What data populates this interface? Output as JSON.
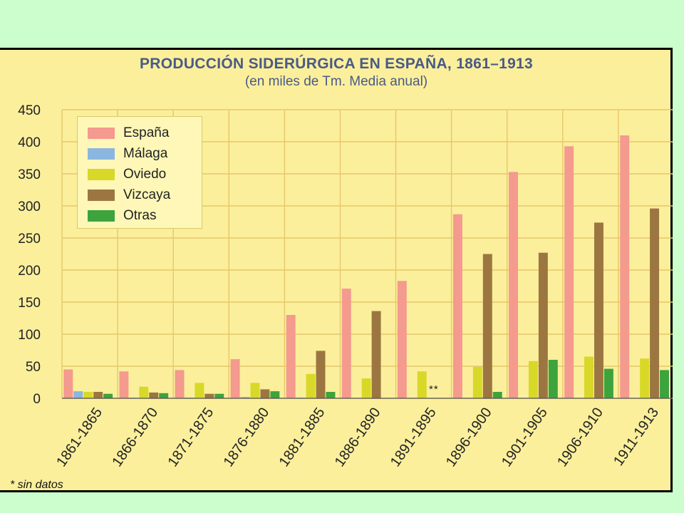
{
  "chart_data": {
    "type": "bar",
    "title": "PRODUCCIÓN SIDERÚRGICA EN ESPAÑA, 1861–1913",
    "subtitle": "(en miles de Tm. Media anual)",
    "xlabel": "",
    "ylabel": "",
    "ylim": [
      0,
      450
    ],
    "yticks": [
      "450",
      "400",
      "350",
      "300",
      "250",
      "200",
      "150",
      "100",
      "50",
      "0"
    ],
    "grid": true,
    "legend_position": "top-left",
    "categories": [
      "1861-1865",
      "1866-1870",
      "1871-1875",
      "1876-1880",
      "1881-1885",
      "1886-1890",
      "1891-1895",
      "1896-1900",
      "1901-1905",
      "1906-1910",
      "1911-1913"
    ],
    "series": [
      {
        "name": "España",
        "color": "#f49a8e",
        "values": [
          45,
          42,
          44,
          61,
          130,
          171,
          183,
          287,
          353,
          393,
          410
        ]
      },
      {
        "name": "Málaga",
        "color": "#8bb6e0",
        "values": [
          11,
          1,
          1,
          2,
          1,
          0,
          null,
          null,
          null,
          null,
          null
        ]
      },
      {
        "name": "Oviedo",
        "color": "#d8d828",
        "values": [
          10,
          18,
          24,
          24,
          38,
          31,
          42,
          49,
          58,
          65,
          62
        ]
      },
      {
        "name": "Vizcaya",
        "color": "#9c7640",
        "values": [
          10,
          9,
          7,
          14,
          74,
          136,
          null,
          225,
          227,
          274,
          296
        ]
      },
      {
        "name": "Otras",
        "color": "#3da33d",
        "values": [
          7,
          8,
          7,
          11,
          10,
          0,
          null,
          10,
          60,
          46,
          44
        ]
      }
    ],
    "annotations": {
      "no_data_mark": "**",
      "footnote": "* sin datos"
    }
  }
}
